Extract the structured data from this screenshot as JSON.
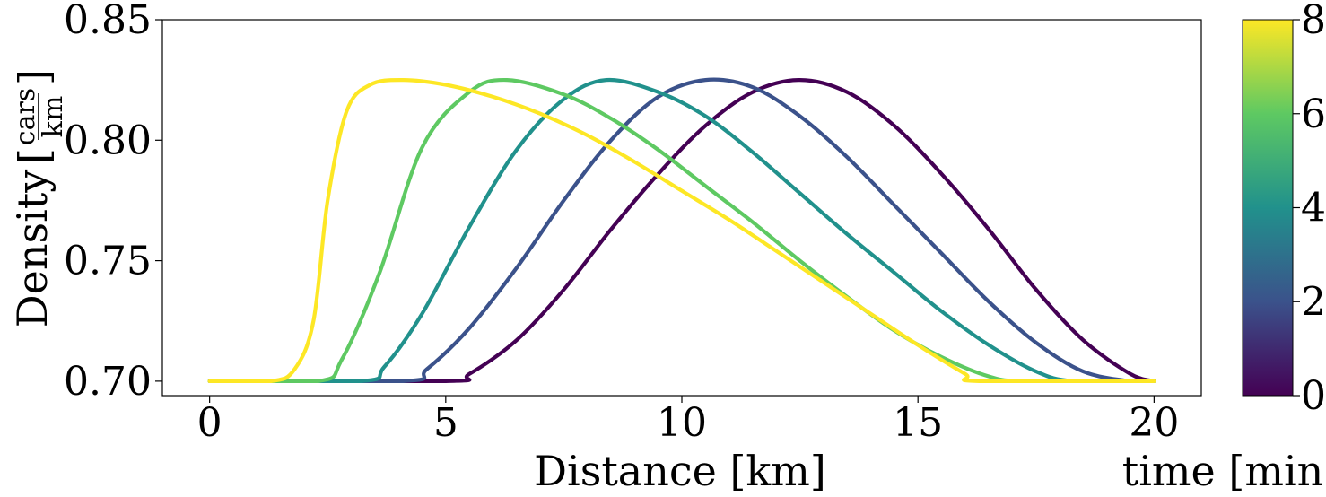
{
  "chart_data": {
    "type": "line",
    "title": "",
    "xlabel": "Distance [km]",
    "ylabel": "Density",
    "ylabel_unit_numerator": "cars",
    "ylabel_unit_denominator": "km",
    "xlim": [
      -1,
      21
    ],
    "ylim": [
      0.694,
      0.85
    ],
    "xticks": [
      "0",
      "5",
      "10",
      "15",
      "20"
    ],
    "yticks": [
      "0.70",
      "0.75",
      "0.80",
      "0.85"
    ],
    "grid": false,
    "colorbar": {
      "label": "time [min]",
      "range": [
        0,
        8
      ],
      "ticks": [
        "0",
        "2",
        "4",
        "6",
        "8"
      ],
      "colormap": "viridis",
      "colors": [
        "#440154",
        "#3b528b",
        "#21918c",
        "#5ec962",
        "#fde725"
      ]
    },
    "series": [
      {
        "time": 0,
        "color": "#440154",
        "x": [
          0,
          5.0,
          5.5,
          6.5,
          7.5,
          8.5,
          9.5,
          10.5,
          11.5,
          12.5,
          13.5,
          14.5,
          15.5,
          16.5,
          17.5,
          18.5,
          19.5,
          20.0
        ],
        "y": [
          0.7,
          0.7,
          0.703,
          0.717,
          0.738,
          0.763,
          0.786,
          0.806,
          0.82,
          0.825,
          0.82,
          0.806,
          0.786,
          0.763,
          0.738,
          0.717,
          0.703,
          0.7
        ]
      },
      {
        "time": 2,
        "color": "#3b528b",
        "x": [
          0,
          4.1,
          4.6,
          5.5,
          6.5,
          7.5,
          8.5,
          9.5,
          10.5,
          11.5,
          12.5,
          13.5,
          14.5,
          15.5,
          16.5,
          17.5,
          18.5,
          19.5,
          20.0
        ],
        "y": [
          0.7,
          0.7,
          0.705,
          0.722,
          0.747,
          0.775,
          0.8,
          0.818,
          0.825,
          0.822,
          0.81,
          0.793,
          0.773,
          0.753,
          0.733,
          0.716,
          0.704,
          0.7,
          0.7
        ]
      },
      {
        "time": 4,
        "color": "#21918c",
        "x": [
          0,
          3.2,
          3.7,
          4.5,
          5.5,
          6.5,
          7.5,
          8.4,
          9.5,
          10.5,
          11.5,
          12.5,
          13.5,
          14.5,
          15.5,
          16.5,
          17.5,
          18.3,
          20.0
        ],
        "y": [
          0.7,
          0.7,
          0.706,
          0.728,
          0.764,
          0.796,
          0.817,
          0.825,
          0.82,
          0.81,
          0.795,
          0.778,
          0.761,
          0.745,
          0.729,
          0.715,
          0.704,
          0.7,
          0.7
        ]
      },
      {
        "time": 6,
        "color": "#5ec962",
        "x": [
          0,
          2.3,
          2.8,
          3.6,
          4.5,
          5.5,
          6.3,
          7.5,
          8.5,
          9.5,
          10.5,
          11.5,
          12.5,
          13.5,
          14.5,
          15.5,
          16.5,
          17.3,
          20.0
        ],
        "y": [
          0.7,
          0.7,
          0.709,
          0.745,
          0.797,
          0.82,
          0.825,
          0.819,
          0.809,
          0.796,
          0.781,
          0.766,
          0.75,
          0.735,
          0.721,
          0.71,
          0.702,
          0.7,
          0.7
        ]
      },
      {
        "time": 8,
        "color": "#fde725",
        "x": [
          0,
          1.3,
          1.8,
          2.2,
          2.5,
          2.9,
          3.4,
          4.1,
          5.0,
          6.0,
          7.0,
          8.0,
          9.0,
          10.0,
          11.0,
          12.0,
          13.0,
          14.0,
          15.0,
          16.0,
          16.3,
          20.0
        ],
        "y": [
          0.7,
          0.7,
          0.705,
          0.725,
          0.775,
          0.812,
          0.823,
          0.825,
          0.823,
          0.818,
          0.811,
          0.802,
          0.791,
          0.779,
          0.767,
          0.754,
          0.741,
          0.728,
          0.715,
          0.703,
          0.7,
          0.7
        ]
      }
    ]
  }
}
